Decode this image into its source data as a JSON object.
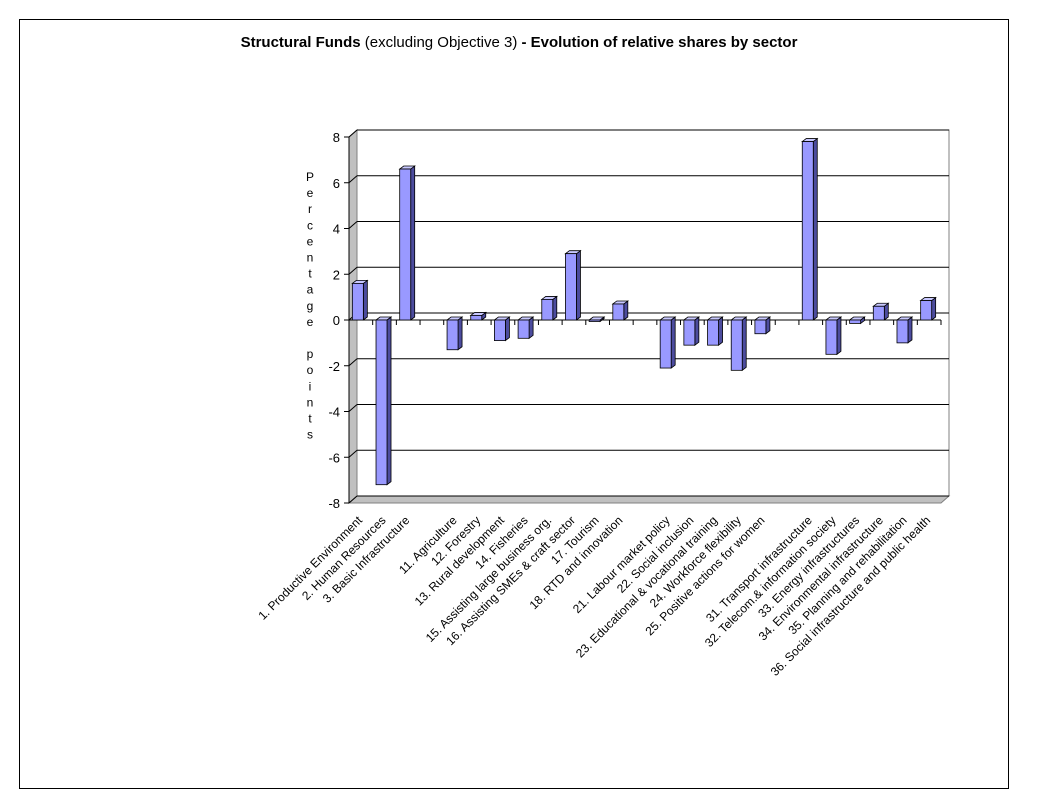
{
  "chart_data": {
    "type": "bar",
    "title": {
      "part1": "Structural Funds",
      "part2": " (excluding Objective 3) ",
      "part3": "- Evolution of relative shares by sector"
    },
    "ylabel": "Percentage points",
    "xlabel": "",
    "ylim": [
      -8,
      8
    ],
    "yticks": [
      -8,
      -6,
      -4,
      -2,
      0,
      2,
      4,
      6,
      8
    ],
    "grid": true,
    "legend": "none",
    "categories": [
      "1. Productive Environment",
      "2. Human Resources",
      "3. Basic Infrastructure",
      "",
      "11. Agriculture",
      "12. Forestry",
      "13. Rural development",
      "14. Fisheries",
      "15. Assisting large business org.",
      "16. Assisting SMEs & craft sector",
      "17. Tourism",
      "18. RTD and innovation",
      "",
      "21. Labour market policy",
      "22. Social inclusion",
      "23. Educational & vocational training",
      "24. Workforce flexibility",
      "25. Positive actions for women",
      "",
      "31. Transport infrastructure",
      "32. Telecom.& information society",
      "33. Energy infrastructures",
      "34. Environmental infrastructure",
      "35. Planning and rehabilitation",
      "36. Social infrastructure and public health"
    ],
    "values": [
      1.6,
      -7.2,
      6.6,
      null,
      -1.3,
      0.2,
      -0.9,
      -0.8,
      0.9,
      2.9,
      -0.05,
      0.7,
      null,
      -2.1,
      -1.1,
      -1.1,
      -2.2,
      -0.6,
      null,
      7.8,
      -1.5,
      -0.15,
      0.6,
      -1.0,
      0.85
    ],
    "colors": {
      "bar_front": "#9999FF",
      "bar_side": "#4C4C9E",
      "bar_top": "#C8C8FF",
      "wall": "#FFFFFF",
      "floor": "#C0C0C0",
      "grid": "#000000"
    }
  }
}
